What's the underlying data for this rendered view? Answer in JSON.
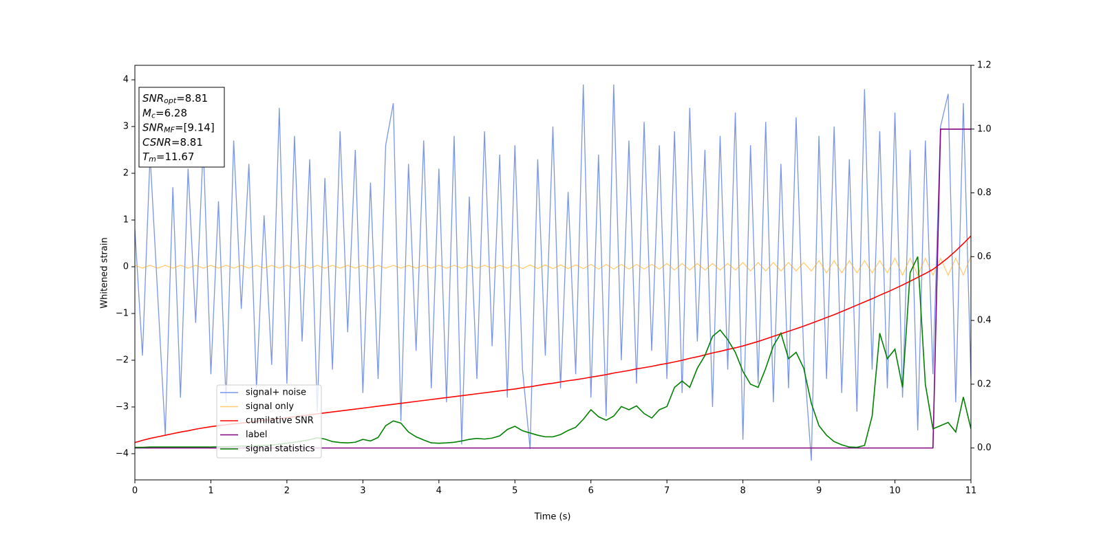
{
  "chart_data": {
    "type": "line",
    "xlabel": "Time (s)",
    "ylabel": "Whitened strain",
    "xlim": [
      0,
      11
    ],
    "ylim": [
      -4.56,
      4.31
    ],
    "y2lim": [
      -0.1,
      1.2
    ],
    "xticks": [
      0,
      1,
      2,
      3,
      4,
      5,
      6,
      7,
      8,
      9,
      10,
      11
    ],
    "yticks": [
      {
        "value": -4,
        "label": "−4"
      },
      {
        "value": -3,
        "label": "−3"
      },
      {
        "value": -2,
        "label": "−2"
      },
      {
        "value": -1,
        "label": "−1"
      },
      0,
      1,
      2,
      3,
      4
    ],
    "y2ticks": [
      {
        "value": 0,
        "label": "0.0"
      },
      0.2,
      0.4,
      0.6,
      0.8,
      {
        "value": 1,
        "label": "1.0"
      },
      1.2
    ],
    "annotation": [
      {
        "text": "SNR",
        "sub": "opt",
        "rest": "=8.81"
      },
      {
        "text": "M",
        "sub": "c",
        "rest": "=6.28"
      },
      {
        "text": "SNR",
        "sub": "MF",
        "rest": "=[9.14]"
      },
      {
        "text": "CSNR",
        "rest": "=8.81"
      },
      {
        "text": "T",
        "sub": "m",
        "rest": "=11.67"
      }
    ],
    "x": [
      0,
      0.1,
      0.2,
      0.3,
      0.4,
      0.5,
      0.6,
      0.7,
      0.8,
      0.9,
      1,
      1.1,
      1.2,
      1.3,
      1.4,
      1.5,
      1.6,
      1.7,
      1.8,
      1.9,
      2,
      2.1,
      2.2,
      2.3,
      2.4,
      2.5,
      2.6,
      2.7,
      2.8,
      2.9,
      3,
      3.1,
      3.2,
      3.3,
      3.4,
      3.5,
      3.6,
      3.7,
      3.8,
      3.9,
      4,
      4.1,
      4.2,
      4.3,
      4.4,
      4.5,
      4.6,
      4.7,
      4.8,
      4.9,
      5,
      5.1,
      5.2,
      5.3,
      5.4,
      5.5,
      5.6,
      5.7,
      5.8,
      5.9,
      6,
      6.1,
      6.2,
      6.3,
      6.4,
      6.5,
      6.6,
      6.7,
      6.8,
      6.9,
      7,
      7.1,
      7.2,
      7.3,
      7.4,
      7.5,
      7.6,
      7.7,
      7.8,
      7.9,
      8,
      8.1,
      8.2,
      8.3,
      8.4,
      8.5,
      8.6,
      8.7,
      8.8,
      8.9,
      9,
      9.1,
      9.2,
      9.3,
      9.4,
      9.5,
      9.6,
      9.7,
      9.8,
      9.9,
      10,
      10.1,
      10.2,
      10.3,
      10.4,
      10.5,
      10.6,
      10.7,
      10.8,
      10.9,
      11
    ],
    "series": [
      {
        "name": "signal+ noise",
        "color": "#6a8ae6",
        "opacity": 0.9,
        "values": [
          0.8,
          -1.9,
          2.4,
          -0.6,
          -3.6,
          1.7,
          -2.8,
          2.1,
          -1.2,
          2.6,
          -2.3,
          1.4,
          -2.9,
          2.7,
          -0.9,
          2.2,
          -2.6,
          1.1,
          -2.1,
          3.4,
          -2.5,
          2.8,
          -1.6,
          2.3,
          -3.1,
          1.9,
          -2.2,
          2.9,
          -1.4,
          2.5,
          -2.7,
          1.8,
          -2.4,
          2.6,
          3.5,
          -3.3,
          2.2,
          -1.8,
          2.7,
          -2.6,
          2.1,
          -2.9,
          2.8,
          -3.8,
          1.5,
          -2.4,
          2.9,
          -1.7,
          2.4,
          -2.8,
          2.6,
          -2.2,
          -3.9,
          2.3,
          -1.9,
          3.0,
          -2.6,
          1.6,
          -2.3,
          3.9,
          -2.8,
          2.4,
          -3.2,
          3.9,
          -2.0,
          2.7,
          -2.5,
          3.1,
          -1.8,
          2.6,
          -2.4,
          2.9,
          -2.7,
          3.4,
          -1.6,
          2.5,
          -3.0,
          2.8,
          -2.2,
          3.3,
          -3.7,
          2.6,
          -2.5,
          3.1,
          -2.9,
          2.2,
          -2.6,
          3.2,
          -1.9,
          -4.15,
          2.8,
          -2.4,
          3.0,
          -2.7,
          2.3,
          -3.1,
          3.8,
          -2.2,
          2.9,
          -2.6,
          3.3,
          -2.8,
          2.5,
          -3.5,
          2.7,
          -2.3,
          3.0,
          3.7,
          -2.9,
          3.5,
          -2.4
        ]
      },
      {
        "name": "signal only",
        "color": "#ffa500",
        "opacity": 0.55,
        "values": [
          0.03,
          -0.03,
          0.03,
          -0.03,
          0.03,
          -0.03,
          0.03,
          -0.03,
          0.03,
          -0.03,
          0.03,
          -0.03,
          0.03,
          -0.03,
          0.03,
          -0.03,
          0.03,
          -0.03,
          0.03,
          -0.03,
          0.03,
          -0.03,
          0.03,
          -0.03,
          0.03,
          -0.03,
          0.03,
          -0.03,
          0.03,
          -0.03,
          0.03,
          -0.03,
          0.03,
          -0.03,
          0.03,
          -0.03,
          0.03,
          -0.03,
          0.03,
          -0.03,
          0.03,
          -0.03,
          0.03,
          -0.03,
          0.03,
          -0.03,
          0.03,
          -0.03,
          0.03,
          -0.03,
          0.04,
          -0.04,
          0.04,
          -0.04,
          0.04,
          -0.04,
          0.04,
          -0.04,
          0.04,
          -0.04,
          0.05,
          -0.05,
          0.05,
          -0.05,
          0.05,
          -0.05,
          0.05,
          -0.05,
          0.05,
          -0.05,
          0.07,
          -0.07,
          0.07,
          -0.07,
          0.07,
          -0.07,
          0.07,
          -0.07,
          0.07,
          -0.07,
          0.09,
          -0.09,
          0.09,
          -0.09,
          0.09,
          -0.09,
          0.09,
          -0.09,
          0.09,
          -0.09,
          0.13,
          -0.13,
          0.13,
          -0.13,
          0.13,
          -0.13,
          0.13,
          -0.13,
          0.13,
          -0.13,
          0.18,
          -0.18,
          0.18,
          -0.18,
          0.18,
          -0.18,
          0.18,
          -0.18,
          0.18,
          -0.18,
          0.23
        ]
      },
      {
        "name": "cumilative SNR",
        "color": "#ff0000",
        "axis": "y2",
        "values": [
          0.017,
          0.024,
          0.03,
          0.035,
          0.04,
          0.045,
          0.05,
          0.054,
          0.059,
          0.063,
          0.067,
          0.07,
          0.073,
          0.076,
          0.078,
          0.081,
          0.084,
          0.087,
          0.089,
          0.092,
          0.095,
          0.098,
          0.101,
          0.104,
          0.107,
          0.11,
          0.113,
          0.116,
          0.119,
          0.122,
          0.125,
          0.128,
          0.131,
          0.134,
          0.137,
          0.14,
          0.143,
          0.146,
          0.149,
          0.152,
          0.155,
          0.158,
          0.161,
          0.164,
          0.167,
          0.17,
          0.173,
          0.176,
          0.179,
          0.182,
          0.185,
          0.189,
          0.192,
          0.196,
          0.2,
          0.203,
          0.207,
          0.211,
          0.214,
          0.218,
          0.222,
          0.226,
          0.23,
          0.235,
          0.239,
          0.243,
          0.248,
          0.252,
          0.256,
          0.261,
          0.265,
          0.27,
          0.275,
          0.281,
          0.286,
          0.292,
          0.298,
          0.303,
          0.309,
          0.314,
          0.32,
          0.327,
          0.334,
          0.342,
          0.35,
          0.358,
          0.366,
          0.374,
          0.382,
          0.391,
          0.4,
          0.409,
          0.418,
          0.428,
          0.438,
          0.448,
          0.458,
          0.468,
          0.479,
          0.489,
          0.5,
          0.511,
          0.523,
          0.535,
          0.547,
          0.56,
          0.578,
          0.597,
          0.618,
          0.641,
          0.665
        ]
      },
      {
        "name": "label",
        "color": "#800080",
        "axis": "y2",
        "values": [
          0,
          0,
          0,
          0,
          0,
          0,
          0,
          0,
          0,
          0,
          0,
          0,
          0,
          0,
          0,
          0,
          0,
          0,
          0,
          0,
          0,
          0,
          0,
          0,
          0,
          0,
          0,
          0,
          0,
          0,
          0,
          0,
          0,
          0,
          0,
          0,
          0,
          0,
          0,
          0,
          0,
          0,
          0,
          0,
          0,
          0,
          0,
          0,
          0,
          0,
          0,
          0,
          0,
          0,
          0,
          0,
          0,
          0,
          0,
          0,
          0,
          0,
          0,
          0,
          0,
          0,
          0,
          0,
          0,
          0,
          0,
          0,
          0,
          0,
          0,
          0,
          0,
          0,
          0,
          0,
          0,
          0,
          0,
          0,
          0,
          0,
          0,
          0,
          0,
          0,
          0,
          0,
          0,
          0,
          0,
          0,
          0,
          0,
          0,
          0,
          0,
          0,
          0,
          0,
          0,
          0,
          1,
          1,
          1,
          1,
          1
        ]
      },
      {
        "name": "signal statistics",
        "color": "#008000",
        "axis": "y2",
        "values": [
          0.002,
          0.002,
          0.003,
          0.003,
          0.003,
          0.003,
          0.003,
          0.003,
          0.003,
          0.003,
          0.003,
          0.004,
          0.004,
          0.005,
          0.006,
          0.006,
          0.007,
          0.008,
          0.009,
          0.012,
          0.015,
          0.018,
          0.022,
          0.026,
          0.032,
          0.028,
          0.02,
          0.017,
          0.016,
          0.018,
          0.027,
          0.022,
          0.033,
          0.07,
          0.085,
          0.078,
          0.05,
          0.035,
          0.025,
          0.016,
          0.015,
          0.016,
          0.018,
          0.022,
          0.027,
          0.03,
          0.028,
          0.031,
          0.038,
          0.058,
          0.068,
          0.054,
          0.047,
          0.04,
          0.035,
          0.035,
          0.042,
          0.055,
          0.065,
          0.09,
          0.12,
          0.098,
          0.087,
          0.1,
          0.13,
          0.12,
          0.132,
          0.108,
          0.094,
          0.12,
          0.13,
          0.19,
          0.21,
          0.19,
          0.25,
          0.29,
          0.35,
          0.37,
          0.34,
          0.3,
          0.24,
          0.2,
          0.19,
          0.25,
          0.32,
          0.36,
          0.28,
          0.3,
          0.25,
          0.14,
          0.07,
          0.04,
          0.02,
          0.01,
          0.003,
          0.002,
          0.008,
          0.1,
          0.36,
          0.28,
          0.31,
          0.19,
          0.55,
          0.6,
          0.2,
          0.06,
          0.07,
          0.08,
          0.05,
          0.16,
          0.06
        ]
      }
    ]
  }
}
